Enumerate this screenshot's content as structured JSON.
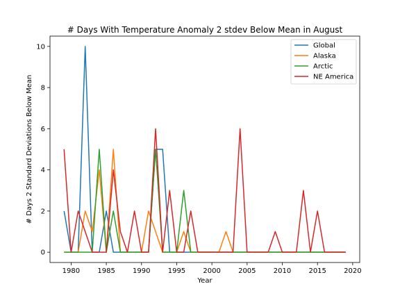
{
  "chart_data": {
    "type": "line",
    "title": "# Days With Temperature Anomaly 2 stdev Below Mean in August",
    "xlabel": "Year",
    "ylabel": "# Days 2 Standard Deviations Below Mean",
    "xlim": [
      1977,
      2021
    ],
    "ylim": [
      -0.5,
      10.5
    ],
    "xticks": [
      1980,
      1985,
      1990,
      1995,
      2000,
      2005,
      2010,
      2015,
      2020
    ],
    "yticks": [
      0,
      2,
      4,
      6,
      8,
      10
    ],
    "legend_position": "top-right",
    "grid": false,
    "x": [
      1979,
      1980,
      1981,
      1982,
      1983,
      1984,
      1985,
      1986,
      1987,
      1988,
      1989,
      1990,
      1991,
      1992,
      1993,
      1994,
      1995,
      1996,
      1997,
      1998,
      1999,
      2000,
      2001,
      2002,
      2003,
      2004,
      2005,
      2006,
      2007,
      2008,
      2009,
      2010,
      2011,
      2012,
      2013,
      2014,
      2015,
      2016,
      2017,
      2018,
      2019
    ],
    "series": [
      {
        "name": "Global",
        "color": "#1f77b4",
        "values": [
          2,
          0,
          0,
          10,
          0,
          0,
          2,
          0,
          0,
          0,
          0,
          0,
          0,
          5,
          5,
          0,
          0,
          0,
          0,
          0,
          0,
          0,
          0,
          0,
          0,
          0,
          0,
          0,
          0,
          0,
          0,
          0,
          0,
          0,
          0,
          0,
          0,
          0,
          0,
          0,
          0
        ]
      },
      {
        "name": "Alaska",
        "color": "#ff7f0e",
        "values": [
          0,
          0,
          0,
          2,
          1,
          4,
          0,
          5,
          0,
          0,
          0,
          0,
          2,
          1,
          0,
          0,
          0,
          1,
          0,
          0,
          0,
          0,
          0,
          1,
          0,
          0,
          0,
          0,
          0,
          0,
          0,
          0,
          0,
          0,
          0,
          0,
          0,
          0,
          0,
          0,
          0
        ]
      },
      {
        "name": "Arctic",
        "color": "#2ca02c",
        "values": [
          0,
          0,
          0,
          0,
          0,
          5,
          0,
          2,
          0,
          0,
          0,
          0,
          0,
          5,
          0,
          0,
          0,
          3,
          0,
          0,
          0,
          0,
          0,
          0,
          0,
          0,
          0,
          0,
          0,
          0,
          0,
          0,
          0,
          0,
          0,
          0,
          0,
          0,
          0,
          0,
          0
        ]
      },
      {
        "name": "NE America",
        "color": "#d62728",
        "values": [
          5,
          0,
          2,
          1,
          0,
          0,
          0,
          4,
          1,
          0,
          2,
          0,
          0,
          6,
          0,
          3,
          0,
          0,
          2,
          0,
          0,
          0,
          0,
          0,
          0,
          6,
          0,
          0,
          0,
          0,
          1,
          0,
          0,
          0,
          3,
          0,
          2,
          0,
          0,
          0,
          0
        ]
      }
    ]
  }
}
